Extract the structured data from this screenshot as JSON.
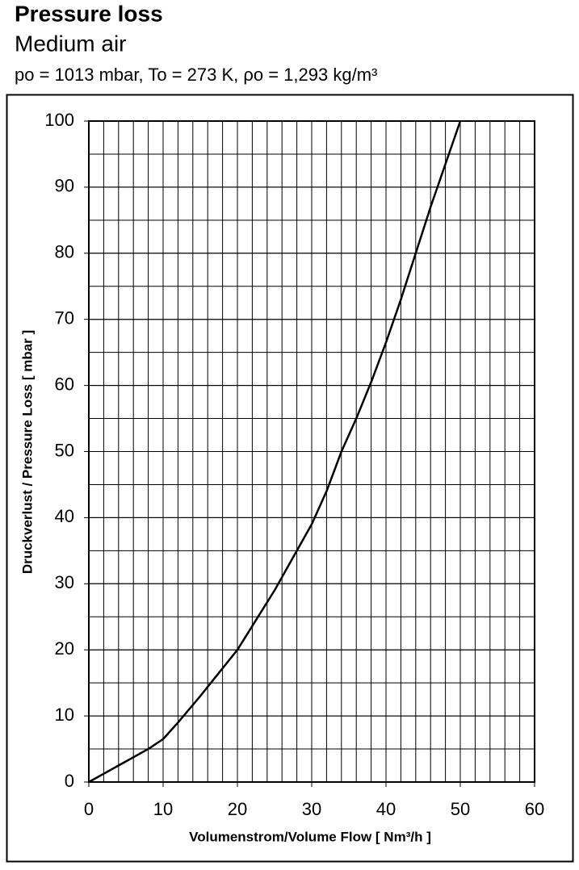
{
  "chart_data": {
    "type": "line",
    "title": "Pressure loss",
    "subtitle": "Medium air",
    "conditions": "po = 1013 mbar, To = 273 K, ρo = 1,293 kg/m³",
    "x_label": "Volumenstrom/Volume Flow [ Nm³/h ]",
    "y_label": "Druckverlust / Pressure Loss [ mbar ]",
    "x": [
      0,
      4,
      8,
      10,
      12,
      15,
      20,
      25,
      30,
      32,
      34,
      36,
      38,
      40,
      42,
      44,
      46,
      48,
      50
    ],
    "series": [
      {
        "name": "Pressure loss",
        "color": "#000000",
        "values": [
          0,
          2.5,
          5,
          6.5,
          9,
          13,
          20,
          29,
          39,
          44,
          50,
          55,
          60.5,
          66.5,
          73,
          80,
          87,
          93.5,
          100
        ]
      }
    ],
    "xlim": [
      0,
      60
    ],
    "ylim": [
      0,
      100
    ],
    "xticks": [
      0,
      10,
      20,
      30,
      40,
      50,
      60
    ],
    "yticks": [
      0,
      10,
      20,
      30,
      40,
      50,
      60,
      70,
      80,
      90,
      100
    ],
    "grid": true,
    "minor_grid": {
      "x": 2,
      "y": 5
    }
  }
}
